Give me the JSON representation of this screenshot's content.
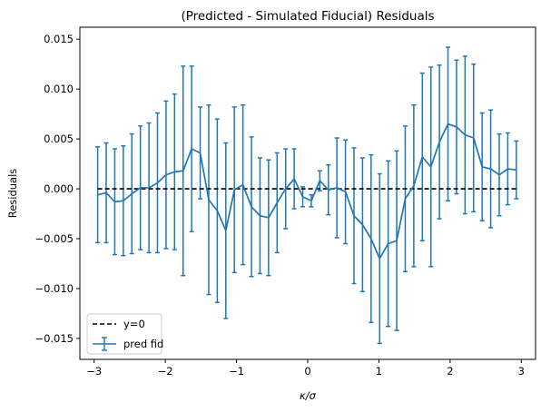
{
  "chart_data": {
    "type": "line",
    "title": "(Predicted - Simulated Fiducial) Residuals",
    "xlabel": "κ/σ",
    "ylabel": "Residuals",
    "xlim": [
      -3.2,
      3.2
    ],
    "ylim": [
      -0.0171,
      0.0162
    ],
    "xticks": [
      -3,
      -2,
      -1,
      0,
      1,
      2,
      3
    ],
    "xtick_labels": [
      "−3",
      "−2",
      "−1",
      "0",
      "1",
      "2",
      "3"
    ],
    "yticks": [
      -0.015,
      -0.01,
      -0.005,
      0.0,
      0.005,
      0.01,
      0.015
    ],
    "ytick_labels": [
      "−0.015",
      "−0.010",
      "−0.005",
      "0.000",
      "0.005",
      "0.010",
      "0.015"
    ],
    "grid": false,
    "legend": "lower-left",
    "colors": {
      "series": "#1f77b4",
      "reference": "#000000"
    },
    "reference_line": {
      "name": "y=0",
      "y": 0,
      "style": "dashed"
    },
    "series": [
      {
        "name": "pred fid",
        "x": [
          -2.95,
          -2.83,
          -2.71,
          -2.59,
          -2.47,
          -2.35,
          -2.23,
          -2.11,
          -1.99,
          -1.87,
          -1.75,
          -1.63,
          -1.51,
          -1.39,
          -1.27,
          -1.15,
          -1.03,
          -0.91,
          -0.79,
          -0.67,
          -0.55,
          -0.43,
          -0.31,
          -0.19,
          -0.07,
          0.05,
          0.17,
          0.29,
          0.41,
          0.53,
          0.65,
          0.77,
          0.89,
          1.01,
          1.13,
          1.25,
          1.37,
          1.49,
          1.61,
          1.73,
          1.85,
          1.97,
          2.09,
          2.21,
          2.33,
          2.45,
          2.57,
          2.69,
          2.81,
          2.93
        ],
        "y": [
          -0.0006,
          -0.0004,
          -0.0013,
          -0.0012,
          -0.0005,
          0.0001,
          0.0001,
          0.0006,
          0.0014,
          0.0017,
          0.0018,
          0.004,
          0.0036,
          -0.0011,
          -0.0022,
          -0.0042,
          -0.0001,
          0.0004,
          -0.0018,
          -0.0027,
          -0.0029,
          -0.0014,
          0.0,
          0.001,
          -0.0008,
          -0.0012,
          0.0008,
          -0.0001,
          0.0001,
          -0.0003,
          -0.0027,
          -0.0036,
          -0.005,
          -0.007,
          -0.0055,
          -0.0052,
          -0.001,
          0.0003,
          0.0032,
          0.0022,
          0.0047,
          0.0065,
          0.0062,
          0.0054,
          0.0051,
          0.0022,
          0.002,
          0.0014,
          0.002,
          0.0019
        ],
        "err": [
          0.0048,
          0.005,
          0.0053,
          0.0055,
          0.006,
          0.0062,
          0.0065,
          0.007,
          0.0074,
          0.0078,
          0.0105,
          0.0083,
          0.0046,
          0.0095,
          0.0092,
          0.0088,
          0.0083,
          0.008,
          0.007,
          0.0058,
          0.0058,
          0.005,
          0.004,
          0.003,
          0.001,
          0.0006,
          0.001,
          0.0025,
          0.005,
          0.0052,
          0.0068,
          0.0067,
          0.0084,
          0.0085,
          0.0083,
          0.009,
          0.0073,
          0.0081,
          0.0084,
          0.01,
          0.0077,
          0.0077,
          0.0067,
          0.0079,
          0.0074,
          0.0054,
          0.0059,
          0.0041,
          0.0036,
          0.0029
        ]
      }
    ]
  }
}
